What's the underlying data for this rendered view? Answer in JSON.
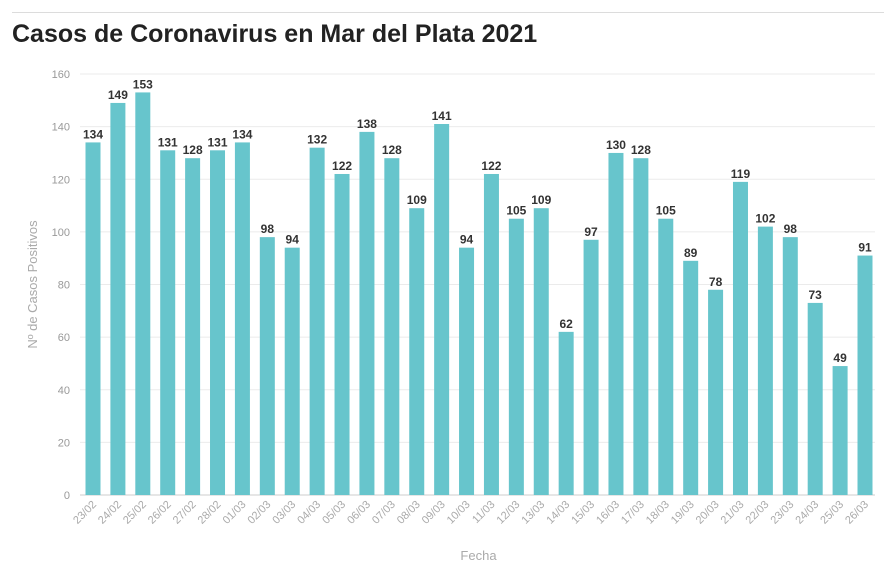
{
  "chart_data": {
    "type": "bar",
    "title": "Casos de Coronavirus en Mar del Plata 2021",
    "xlabel": "Fecha",
    "ylabel": "Nº de Casos Positivos",
    "ylim": [
      0,
      160
    ],
    "yticks": [
      0,
      20,
      40,
      60,
      80,
      100,
      120,
      140,
      160
    ],
    "grid": true,
    "bar_color": "#67c5cc",
    "categories": [
      "23/02",
      "24/02",
      "25/02",
      "26/02",
      "27/02",
      "28/02",
      "01/03",
      "02/03",
      "03/03",
      "04/03",
      "05/03",
      "06/03",
      "07/03",
      "08/03",
      "09/03",
      "10/03",
      "11/03",
      "12/03",
      "13/03",
      "14/03",
      "15/03",
      "16/03",
      "17/03",
      "18/03",
      "19/03",
      "20/03",
      "21/03",
      "22/03",
      "23/03",
      "24/03",
      "25/03",
      "26/03"
    ],
    "values": [
      134,
      149,
      153,
      131,
      128,
      131,
      134,
      98,
      94,
      132,
      122,
      138,
      128,
      109,
      141,
      94,
      122,
      105,
      109,
      62,
      97,
      130,
      128,
      105,
      89,
      78,
      119,
      102,
      98,
      73,
      49,
      91
    ]
  }
}
